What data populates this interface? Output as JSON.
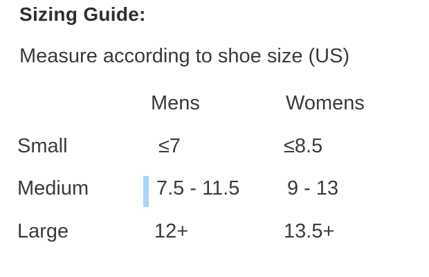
{
  "section": {
    "heading": "Sizing Guide:",
    "subtitle": "Measure according to shoe size (US)"
  },
  "size_table": {
    "columns": {
      "label": "",
      "mens": "Mens",
      "womens": "Womens"
    },
    "rows": [
      {
        "label": "Small",
        "mens": "≤7",
        "womens": "≤8.5"
      },
      {
        "label": "Medium",
        "mens": "7.5 - 11.5",
        "womens": "9 - 13"
      },
      {
        "label": "Large",
        "mens": "12+",
        "womens": "13.5+"
      }
    ]
  },
  "cursor": {
    "name": "text-selection-cursor",
    "color": "#a8d4f6"
  },
  "colors": {
    "background": "#ffffff",
    "heading_text": "#2f2f2f",
    "body_text": "#3a3a3a"
  }
}
